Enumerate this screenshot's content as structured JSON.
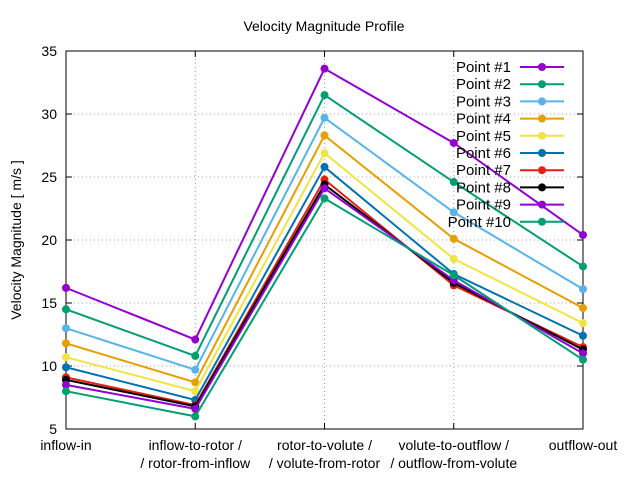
{
  "chart_data": {
    "type": "line",
    "title": "Velocity Magnitude Profile",
    "xlabel": "",
    "ylabel": "Velocity Magnitude [ m/s ]",
    "ylim": [
      5,
      35
    ],
    "yticks": [
      5,
      10,
      15,
      20,
      25,
      30,
      35
    ],
    "grid": true,
    "legend_position": "top-right",
    "categories": [
      [
        "inflow-in"
      ],
      [
        "inflow-to-rotor /",
        "/ rotor-from-inflow"
      ],
      [
        "rotor-to-volute /",
        "/ volute-from-rotor"
      ],
      [
        "volute-to-outflow /",
        "/ outflow-from-volute"
      ],
      [
        "outflow-out"
      ]
    ],
    "series": [
      {
        "name": "Point #1",
        "color": "#9400d3",
        "values": [
          16.2,
          12.1,
          33.6,
          27.7,
          20.4
        ]
      },
      {
        "name": "Point #2",
        "color": "#009e73",
        "values": [
          14.5,
          10.8,
          31.5,
          24.6,
          17.9
        ]
      },
      {
        "name": "Point #3",
        "color": "#56b4e9",
        "values": [
          13.0,
          9.7,
          29.7,
          22.2,
          16.1
        ]
      },
      {
        "name": "Point #4",
        "color": "#e69f00",
        "values": [
          11.8,
          8.7,
          28.3,
          20.1,
          14.6
        ]
      },
      {
        "name": "Point #5",
        "color": "#f0e442",
        "values": [
          10.7,
          8.0,
          26.9,
          18.5,
          13.4
        ]
      },
      {
        "name": "Point #6",
        "color": "#0072b2",
        "values": [
          9.9,
          7.3,
          25.8,
          17.3,
          12.4
        ]
      },
      {
        "name": "Point #7",
        "color": "#e51e10",
        "values": [
          9.1,
          6.9,
          24.8,
          16.4,
          11.5
        ]
      },
      {
        "name": "Point #8",
        "color": "#000000",
        "values": [
          8.9,
          6.8,
          24.4,
          16.6,
          11.3
        ]
      },
      {
        "name": "Point #9",
        "color": "#9400d3",
        "values": [
          8.5,
          6.6,
          24.1,
          16.8,
          11.0
        ]
      },
      {
        "name": "Point #10",
        "color": "#009e73",
        "values": [
          8.0,
          6.0,
          23.3,
          17.2,
          10.5
        ]
      }
    ]
  }
}
